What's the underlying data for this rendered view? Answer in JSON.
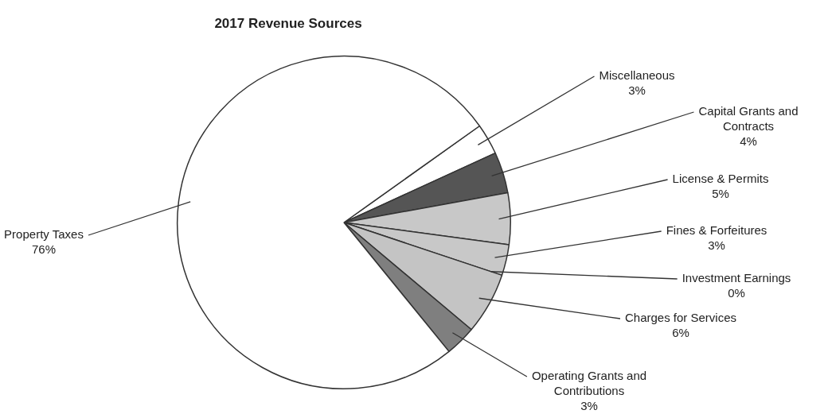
{
  "chart_data": {
    "type": "pie",
    "title": "2017 Revenue Sources",
    "categories": [
      "Miscellaneous",
      "Capital Grants and Contracts",
      "License & Permits",
      "Fines & Forfeitures",
      "Investment Earnings",
      "Charges for Services",
      "Operating Grants and Contributions",
      "Property Taxes"
    ],
    "values": [
      3,
      4,
      5,
      3,
      0,
      6,
      3,
      76
    ],
    "colors": [
      "#ffffff",
      "#555555",
      "#c8c8c8",
      "#c8c8c8",
      "#333333",
      "#c4c4c4",
      "#7f7f7f",
      "#ffffff"
    ],
    "value_labels": [
      "3%",
      "4%",
      "5%",
      "3%",
      "0%",
      "6%",
      "3%",
      "76%"
    ],
    "legend": false
  }
}
